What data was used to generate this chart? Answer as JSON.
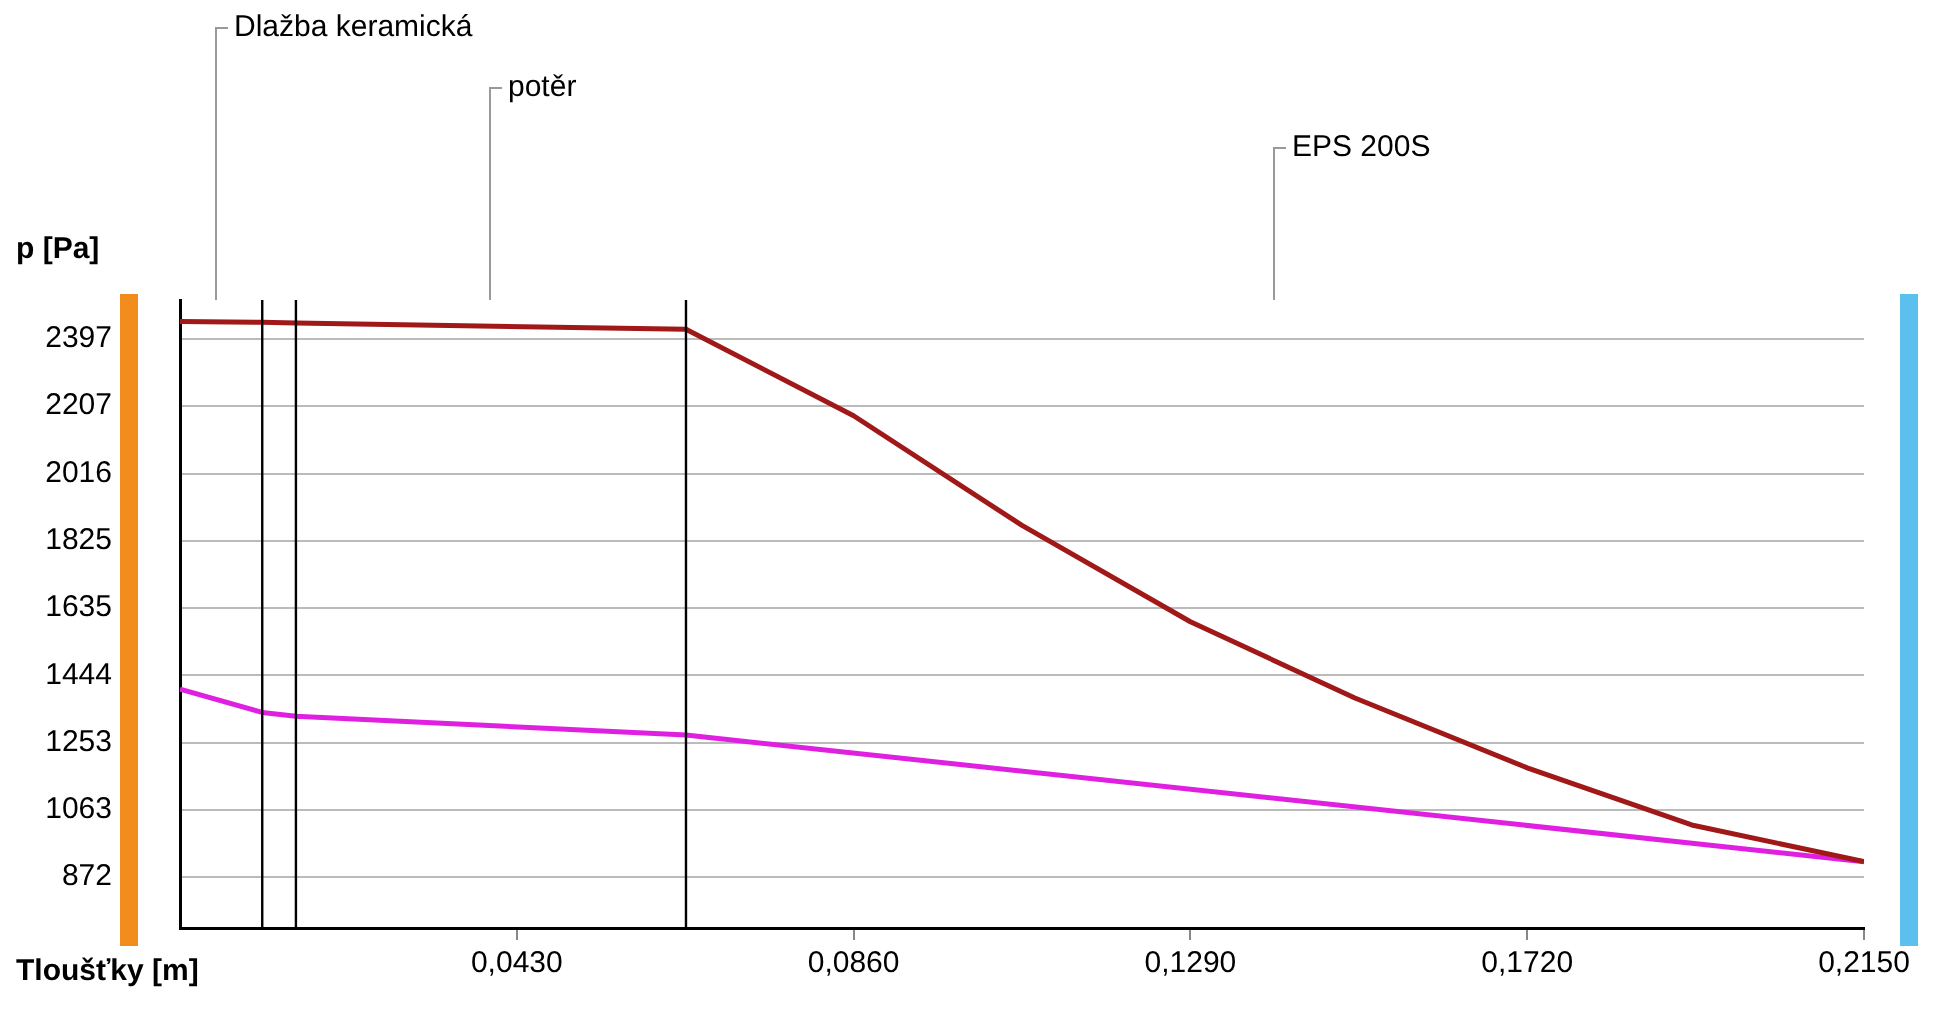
{
  "chart_data": {
    "type": "line",
    "xlabel": "Tloušťky [m]",
    "ylabel": "p [Pa]",
    "xlim": [
      0,
      0.215
    ],
    "xticks": [
      {
        "value": 0.043,
        "label": "0,0430"
      },
      {
        "value": 0.086,
        "label": "0,0860"
      },
      {
        "value": 0.129,
        "label": "0,1290"
      },
      {
        "value": 0.172,
        "label": "0,1720"
      },
      {
        "value": 0.215,
        "label": "0,2150"
      }
    ],
    "ylim": [
      728,
      2508
    ],
    "yticks": [
      872,
      1063,
      1253,
      1444,
      1635,
      1825,
      2016,
      2207,
      2397
    ],
    "grid": "y",
    "marker": "none",
    "series": [
      {
        "color": "#a01818",
        "x": [
          0,
          0.0105,
          0.0148,
          0.0646,
          0.086,
          0.1075,
          0.129,
          0.15,
          0.172,
          0.193,
          0.215
        ],
        "values": [
          2447,
          2445,
          2443,
          2425,
          2180,
          1869,
          1596,
          1380,
          1182,
          1020,
          916
        ]
      },
      {
        "color": "#e020e0",
        "x": [
          0,
          0.0105,
          0.0148,
          0.0646,
          0.215
        ],
        "values": [
          1405,
          1339,
          1328,
          1275,
          916
        ]
      }
    ],
    "ref_lines": [
      {
        "axis": "x",
        "value": 0.0105,
        "color": "#000000"
      },
      {
        "axis": "x",
        "value": 0.0148,
        "color": "#000000"
      },
      {
        "axis": "x",
        "value": 0.0646,
        "color": "#000000"
      }
    ],
    "annotations": [
      "Dlažba keramická",
      "potěr",
      "EPS 200S"
    ]
  }
}
